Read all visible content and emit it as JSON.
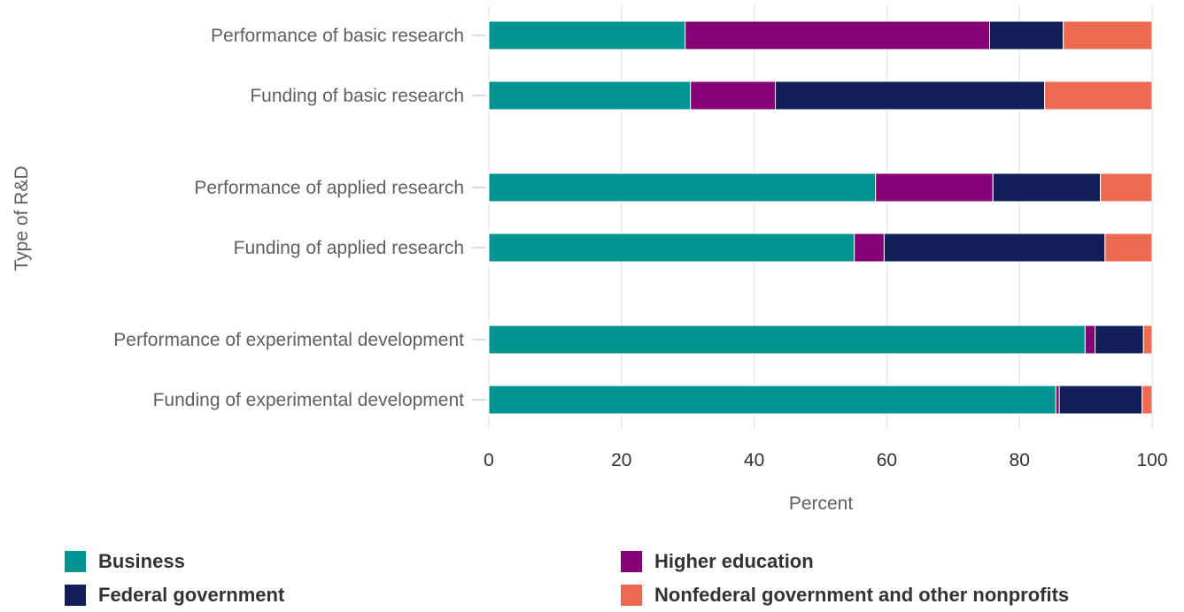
{
  "chart_data": {
    "type": "bar",
    "orientation": "horizontal",
    "stacked": true,
    "categories": [
      "Performance of basic research",
      "Funding of basic research",
      "Performance of applied research",
      "Funding of applied research",
      "Performance of experimental development",
      "Funding of experimental development"
    ],
    "series": [
      {
        "name": "Business",
        "color": "#009590",
        "values": [
          29.6,
          30.4,
          58.3,
          55.1,
          89.9,
          85.5
        ]
      },
      {
        "name": "Higher education",
        "color": "#860076",
        "values": [
          45.9,
          12.8,
          17.7,
          4.5,
          1.5,
          0.5
        ]
      },
      {
        "name": "Federal government",
        "color": "#111e57",
        "values": [
          11.1,
          40.6,
          16.2,
          33.3,
          7.3,
          12.5
        ]
      },
      {
        "name": "Nonfederal government and other nonprofits",
        "color": "#ed6a51",
        "values": [
          13.4,
          16.2,
          7.8,
          7.1,
          1.3,
          1.5
        ]
      }
    ],
    "xlabel": "Percent",
    "ylabel": "Type of R&D",
    "xlim": [
      0,
      100
    ],
    "xticks": [
      0,
      20,
      40,
      60,
      80,
      100
    ],
    "grid": true,
    "legend_position": "bottom"
  }
}
